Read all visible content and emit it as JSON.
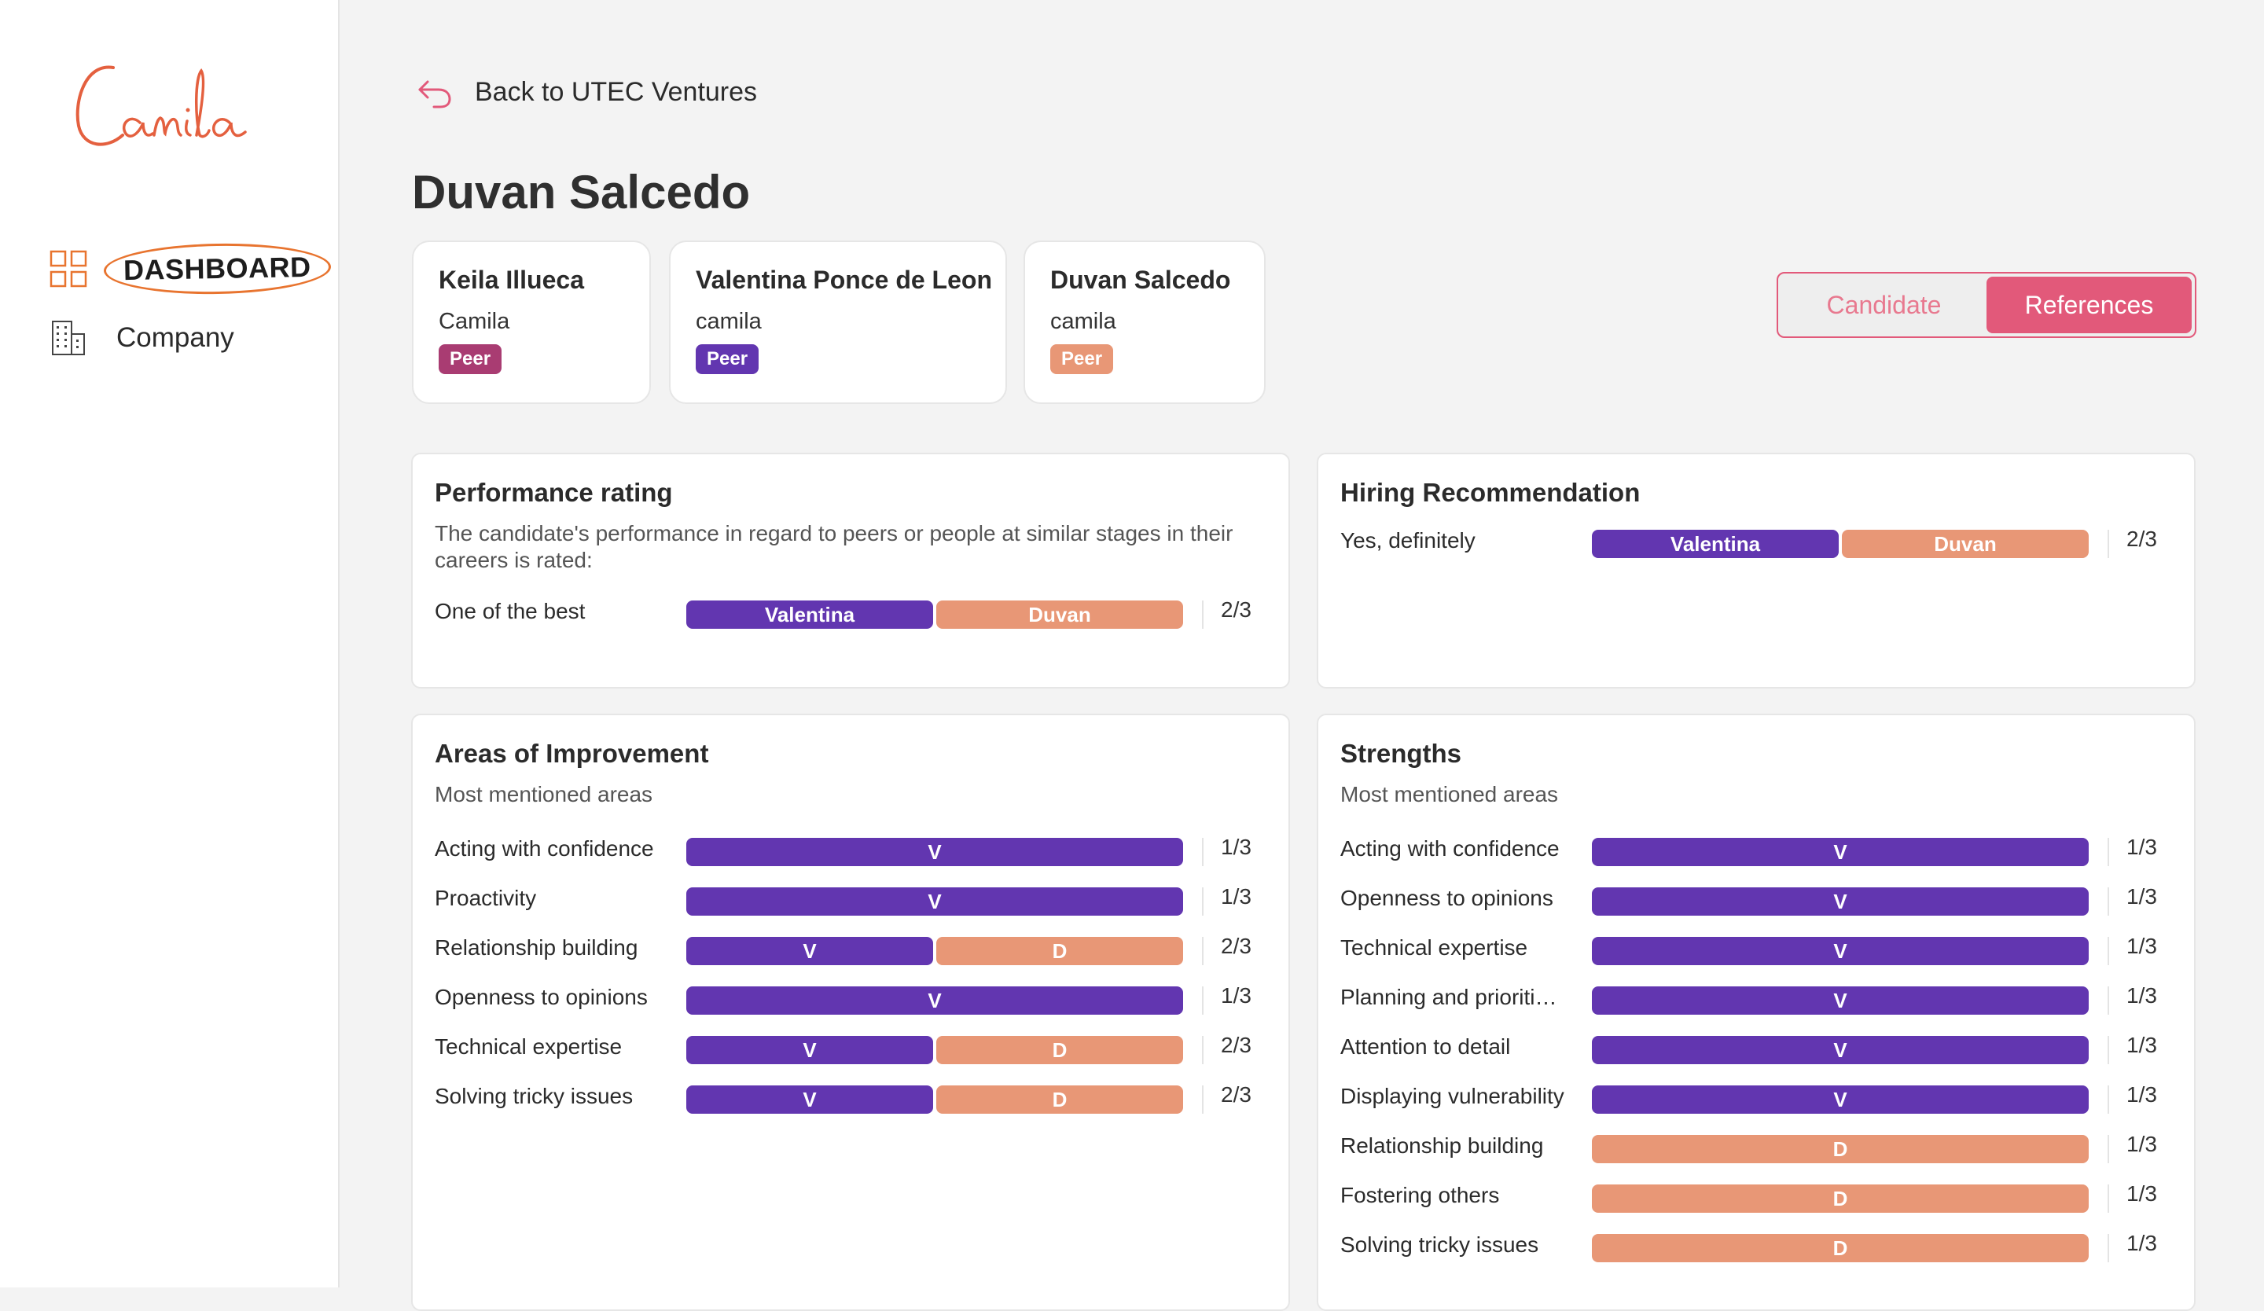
{
  "brand": {
    "logo_text": "Camila",
    "accent": "#e2597a",
    "logo_color": "#e4603f"
  },
  "sidebar": {
    "items": [
      {
        "label": "DASHBOARD",
        "icon": "grid-icon"
      },
      {
        "label": "Company",
        "icon": "building-icon"
      }
    ]
  },
  "header": {
    "back_label": "Back to UTEC Ventures",
    "title": "Duvan Salcedo"
  },
  "references": [
    {
      "name": "Keila Illueca",
      "company": "Camila",
      "badge": "Peer",
      "badge_color": "#a93c72"
    },
    {
      "name": "Valentina Ponce de Leon",
      "company": "camila",
      "badge": "Peer",
      "badge_color": "#6236b0"
    },
    {
      "name": "Duvan Salcedo",
      "company": "camila",
      "badge": "Peer",
      "badge_color": "#e89776"
    }
  ],
  "toggle": {
    "candidate": "Candidate",
    "references": "References",
    "active": "references"
  },
  "colors": {
    "valentina": "#6236b0",
    "duvan": "#e89776"
  },
  "performance": {
    "title": "Performance rating",
    "subtitle": "The candidate's performance in regard to peers or people at similar stages in their careers is rated:",
    "rows": [
      {
        "label": "One of the best",
        "segments": [
          {
            "text": "Valentina",
            "color": "purple"
          },
          {
            "text": "Duvan",
            "color": "orange"
          }
        ],
        "count": "2/3"
      }
    ]
  },
  "hiring": {
    "title": "Hiring Recommendation",
    "rows": [
      {
        "label": "Yes, definitely",
        "segments": [
          {
            "text": "Valentina",
            "color": "purple"
          },
          {
            "text": "Duvan",
            "color": "orange"
          }
        ],
        "count": "2/3"
      }
    ]
  },
  "improvement": {
    "title": "Areas of Improvement",
    "subtitle": "Most mentioned areas",
    "rows": [
      {
        "label": "Acting with confidence",
        "segments": [
          {
            "text": "V",
            "color": "purple"
          }
        ],
        "count": "1/3"
      },
      {
        "label": "Proactivity",
        "segments": [
          {
            "text": "V",
            "color": "purple"
          }
        ],
        "count": "1/3"
      },
      {
        "label": "Relationship building",
        "segments": [
          {
            "text": "V",
            "color": "purple"
          },
          {
            "text": "D",
            "color": "orange"
          }
        ],
        "count": "2/3"
      },
      {
        "label": "Openness to opinions",
        "segments": [
          {
            "text": "V",
            "color": "purple"
          }
        ],
        "count": "1/3"
      },
      {
        "label": "Technical expertise",
        "segments": [
          {
            "text": "V",
            "color": "purple"
          },
          {
            "text": "D",
            "color": "orange"
          }
        ],
        "count": "2/3"
      },
      {
        "label": "Solving tricky issues",
        "segments": [
          {
            "text": "V",
            "color": "purple"
          },
          {
            "text": "D",
            "color": "orange"
          }
        ],
        "count": "2/3"
      }
    ]
  },
  "strengths": {
    "title": "Strengths",
    "subtitle": "Most mentioned areas",
    "rows": [
      {
        "label": "Acting with confidence",
        "segments": [
          {
            "text": "V",
            "color": "purple"
          }
        ],
        "count": "1/3"
      },
      {
        "label": "Openness to opinions",
        "segments": [
          {
            "text": "V",
            "color": "purple"
          }
        ],
        "count": "1/3"
      },
      {
        "label": "Technical expertise",
        "segments": [
          {
            "text": "V",
            "color": "purple"
          }
        ],
        "count": "1/3"
      },
      {
        "label": "Planning and prioriti…",
        "segments": [
          {
            "text": "V",
            "color": "purple"
          }
        ],
        "count": "1/3"
      },
      {
        "label": "Attention to detail",
        "segments": [
          {
            "text": "V",
            "color": "purple"
          }
        ],
        "count": "1/3"
      },
      {
        "label": "Displaying vulnerability",
        "segments": [
          {
            "text": "V",
            "color": "purple"
          }
        ],
        "count": "1/3"
      },
      {
        "label": "Relationship building",
        "segments": [
          {
            "text": "D",
            "color": "orange"
          }
        ],
        "count": "1/3"
      },
      {
        "label": "Fostering others",
        "segments": [
          {
            "text": "D",
            "color": "orange"
          }
        ],
        "count": "1/3"
      },
      {
        "label": "Solving tricky issues",
        "segments": [
          {
            "text": "D",
            "color": "orange"
          }
        ],
        "count": "1/3"
      }
    ]
  }
}
